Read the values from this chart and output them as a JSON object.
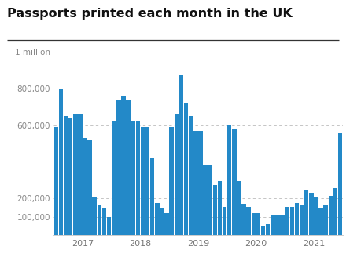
{
  "title": "Passports printed each month in the UK",
  "bar_color": "#2389c8",
  "background_color": "#ffffff",
  "yticks": [
    100000,
    200000,
    600000,
    800000,
    1000000
  ],
  "ytick_labels": [
    "100,000",
    "200,000",
    "600,000",
    "800,000",
    "1 million"
  ],
  "ylim": [
    0,
    1050000
  ],
  "year_labels": [
    "2017",
    "2018",
    "2019",
    "2020",
    "2021"
  ],
  "values": [
    590000,
    800000,
    650000,
    640000,
    660000,
    660000,
    530000,
    515000,
    210000,
    165000,
    150000,
    100000,
    620000,
    740000,
    760000,
    740000,
    620000,
    620000,
    590000,
    590000,
    420000,
    175000,
    150000,
    120000,
    590000,
    660000,
    870000,
    720000,
    650000,
    570000,
    570000,
    385000,
    385000,
    275000,
    295000,
    155000,
    600000,
    580000,
    295000,
    170000,
    155000,
    120000,
    120000,
    50000,
    60000,
    110000,
    110000,
    110000,
    155000,
    155000,
    175000,
    165000,
    245000,
    230000,
    210000,
    150000,
    165000,
    215000,
    255000,
    555000
  ]
}
